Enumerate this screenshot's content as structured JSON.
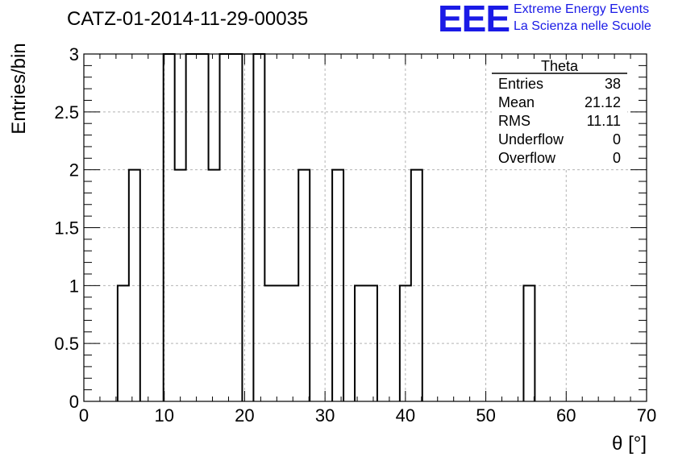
{
  "header": {
    "title": "CATZ-01-2014-11-29-00035",
    "logo_text": "EEE",
    "logo_line1": "Extreme Energy Events",
    "logo_line2": "La Scienza nelle Scuole",
    "logo_color": "#1a1ae6"
  },
  "stats": {
    "title": "Theta",
    "rows": [
      {
        "label": "Entries",
        "value": "38"
      },
      {
        "label": "Mean",
        "value": "21.12"
      },
      {
        "label": "RMS",
        "value": "11.11"
      },
      {
        "label": "Underflow",
        "value": "0"
      },
      {
        "label": "Overflow",
        "value": "0"
      }
    ]
  },
  "chart_data": {
    "type": "bar",
    "histogram": true,
    "xlabel": "θ [°]",
    "ylabel": "Entries/bin",
    "xlim": [
      0,
      70
    ],
    "ylim": [
      0,
      3
    ],
    "xticks": [
      0,
      10,
      20,
      30,
      40,
      50,
      60,
      70
    ],
    "xtick_labels": [
      "0",
      "10",
      "20",
      "30",
      "40",
      "50",
      "60",
      "70"
    ],
    "yticks": [
      0,
      0.5,
      1,
      1.5,
      2,
      2.5,
      3
    ],
    "ytick_labels": [
      "0",
      "0.5",
      "1",
      "1.5",
      "2",
      "2.5",
      "3"
    ],
    "grid": true,
    "bins": [
      {
        "x0": 4.2,
        "x1": 5.6,
        "value": 1
      },
      {
        "x0": 5.6,
        "x1": 7.0,
        "value": 2
      },
      {
        "x0": 9.9,
        "x1": 11.3,
        "value": 3
      },
      {
        "x0": 11.3,
        "x1": 12.7,
        "value": 2
      },
      {
        "x0": 12.7,
        "x1": 15.5,
        "value": 3
      },
      {
        "x0": 15.5,
        "x1": 16.9,
        "value": 2
      },
      {
        "x0": 16.9,
        "x1": 19.7,
        "value": 3
      },
      {
        "x0": 21.1,
        "x1": 22.5,
        "value": 3
      },
      {
        "x0": 22.5,
        "x1": 26.7,
        "value": 1
      },
      {
        "x0": 26.7,
        "x1": 28.1,
        "value": 2
      },
      {
        "x0": 30.9,
        "x1": 32.3,
        "value": 2
      },
      {
        "x0": 33.7,
        "x1": 36.5,
        "value": 1
      },
      {
        "x0": 39.3,
        "x1": 40.7,
        "value": 1
      },
      {
        "x0": 40.7,
        "x1": 42.1,
        "value": 2
      },
      {
        "x0": 54.7,
        "x1": 56.1,
        "value": 1
      }
    ]
  }
}
